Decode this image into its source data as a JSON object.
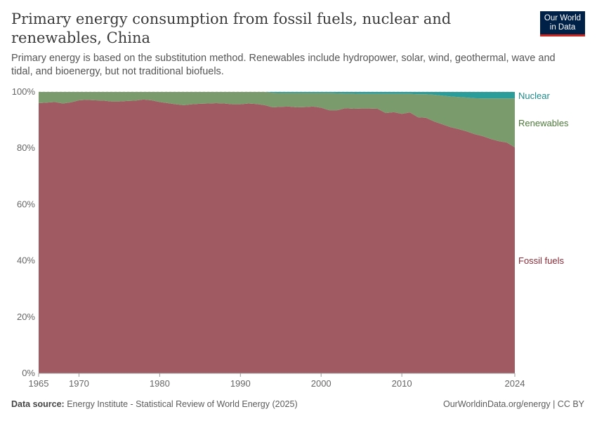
{
  "header": {
    "title": "Primary energy consumption from fossil fuels, nuclear and renewables, China",
    "subtitle": "Primary energy is based on the substitution method. Renewables include hydropower, solar, wind, geothermal, wave and tidal, and bioenergy, but not traditional biofuels.",
    "logo": "Our World in Data"
  },
  "footer": {
    "source_label": "Data source:",
    "source": "Energy Institute - Statistical Review of World Energy (2025)",
    "right": "OurWorldinData.org/energy | CC BY"
  },
  "chart_data": {
    "type": "area",
    "stacked": true,
    "normalized": true,
    "xlim": [
      1965,
      2024
    ],
    "ylim": [
      0,
      100
    ],
    "x_ticks": [
      "1965",
      "1970",
      "1980",
      "1990",
      "2000",
      "2010",
      "2024"
    ],
    "y_ticks": [
      "0%",
      "20%",
      "40%",
      "60%",
      "80%",
      "100%"
    ],
    "grid": "horizontal dashed",
    "legend": "right, inline labels",
    "x": [
      1965,
      1966,
      1967,
      1968,
      1969,
      1970,
      1971,
      1972,
      1973,
      1974,
      1975,
      1976,
      1977,
      1978,
      1979,
      1980,
      1981,
      1982,
      1983,
      1984,
      1985,
      1986,
      1987,
      1988,
      1989,
      1990,
      1991,
      1992,
      1993,
      1994,
      1995,
      1996,
      1997,
      1998,
      1999,
      2000,
      2001,
      2002,
      2003,
      2004,
      2005,
      2006,
      2007,
      2008,
      2009,
      2010,
      2011,
      2012,
      2013,
      2014,
      2015,
      2016,
      2017,
      2018,
      2019,
      2020,
      2021,
      2022,
      2023,
      2024
    ],
    "series": [
      {
        "name": "Fossil fuels",
        "color": "#a05a62",
        "label_color": "#8b2a35",
        "values": [
          96.0,
          96.2,
          96.4,
          95.9,
          96.3,
          97.0,
          97.2,
          97.0,
          96.9,
          96.6,
          96.6,
          96.8,
          96.9,
          97.3,
          97.0,
          96.4,
          96.0,
          95.6,
          95.3,
          95.6,
          95.8,
          95.9,
          96.0,
          95.9,
          95.6,
          95.6,
          95.9,
          95.7,
          95.3,
          94.5,
          94.7,
          94.8,
          94.5,
          94.6,
          94.8,
          94.4,
          93.5,
          93.5,
          94.2,
          94.0,
          94.1,
          94.1,
          94.0,
          92.5,
          92.8,
          92.2,
          92.7,
          91.0,
          90.8,
          89.5,
          88.5,
          87.5,
          86.8,
          86.0,
          85.0,
          84.3,
          83.3,
          82.5,
          82.0,
          80.3
        ]
      },
      {
        "name": "Renewables",
        "color": "#7a9b6c",
        "label_color": "#4d7a3a",
        "values": [
          4.0,
          3.8,
          3.6,
          4.1,
          3.7,
          3.0,
          2.8,
          3.0,
          3.1,
          3.4,
          3.4,
          3.2,
          3.1,
          2.7,
          3.0,
          3.6,
          4.0,
          4.4,
          4.7,
          4.4,
          4.2,
          4.1,
          4.0,
          4.1,
          4.4,
          4.4,
          4.1,
          4.3,
          4.7,
          5.2,
          4.9,
          4.8,
          5.1,
          5.0,
          4.8,
          5.2,
          6.1,
          6.0,
          5.2,
          5.4,
          5.2,
          5.2,
          5.3,
          6.8,
          6.5,
          7.1,
          6.6,
          8.2,
          8.4,
          9.5,
          10.2,
          10.9,
          11.4,
          12.0,
          12.8,
          13.4,
          14.4,
          15.2,
          15.7,
          17.4
        ]
      },
      {
        "name": "Nuclear",
        "color": "#2a9d9a",
        "label_color": "#1e8a8a",
        "values": [
          0,
          0,
          0,
          0,
          0,
          0,
          0,
          0,
          0,
          0,
          0,
          0,
          0,
          0,
          0,
          0,
          0,
          0,
          0,
          0,
          0,
          0,
          0,
          0,
          0,
          0,
          0,
          0,
          0,
          0.3,
          0.4,
          0.4,
          0.4,
          0.4,
          0.4,
          0.4,
          0.4,
          0.5,
          0.6,
          0.6,
          0.7,
          0.7,
          0.7,
          0.7,
          0.7,
          0.7,
          0.7,
          0.8,
          0.8,
          1.0,
          1.3,
          1.6,
          1.8,
          2.0,
          2.2,
          2.3,
          2.3,
          2.3,
          2.3,
          2.3
        ]
      }
    ]
  }
}
